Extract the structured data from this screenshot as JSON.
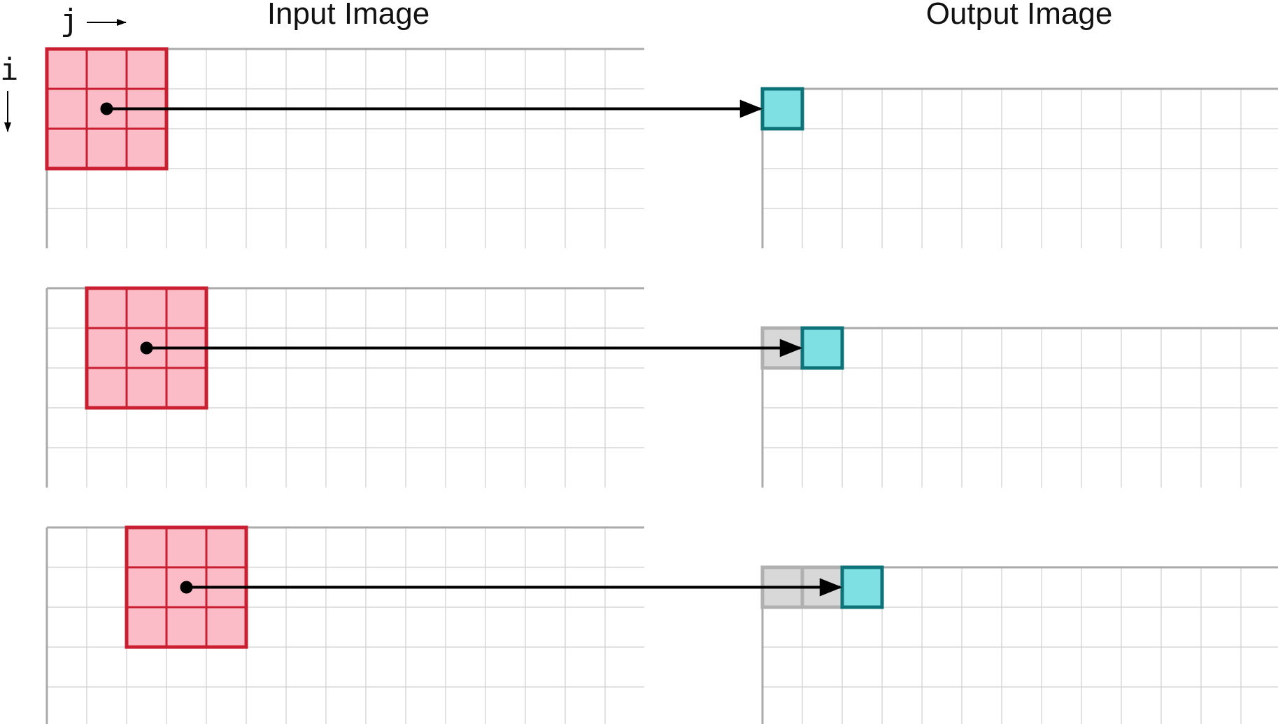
{
  "titles": {
    "input": "Input Image",
    "output": "Output Image"
  },
  "axes": {
    "column_label": "j",
    "row_label": "i"
  },
  "input_grid": {
    "visible_columns": 15,
    "visible_rows": 5
  },
  "output_grid": {
    "visible_columns": 13,
    "visible_rows": 4
  },
  "kernel": {
    "rows": 3,
    "cols": 3
  },
  "steps": [
    {
      "step": 1,
      "kernel_col": 0,
      "output_col": 0,
      "prior_outputs": 0
    },
    {
      "step": 2,
      "kernel_col": 1,
      "output_col": 1,
      "prior_outputs": 1
    },
    {
      "step": 3,
      "kernel_col": 2,
      "output_col": 2,
      "prior_outputs": 2
    }
  ],
  "colors": {
    "grid_line": "#cfcfcf",
    "grid_border": "#aaaaaa",
    "kernel_fill": "#fbbcc7",
    "kernel_stroke": "#c91f30",
    "output_fill": "#7fe0e3",
    "output_stroke": "#0e7378",
    "done_fill": "#d8d8d8",
    "done_stroke": "#b0b0b0",
    "arrow": "#000000"
  }
}
